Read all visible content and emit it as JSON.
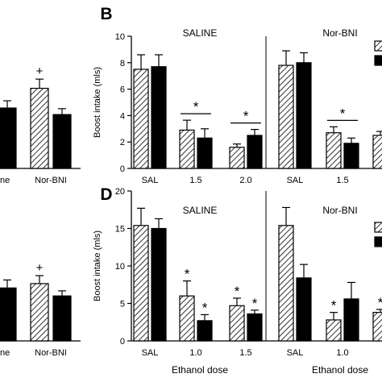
{
  "chart_data": [
    {
      "panel_letter": "",
      "type": "bar",
      "title": "",
      "xlabel": "",
      "ylabel": "",
      "ylim": [
        0,
        10
      ],
      "group_labels": [
        "ne",
        "Nor-BNI"
      ],
      "categories": [
        {
          "label": "",
          "values": [
            null,
            4.6
          ]
        },
        {
          "label": "",
          "values": [
            6.1,
            4.1
          ]
        }
      ],
      "error_bars": [
        {
          "values": [
            null,
            0.55
          ]
        },
        {
          "values": [
            0.7,
            0.45
          ]
        }
      ],
      "annotations": [
        {
          "text": "+",
          "category": 1,
          "series": 0
        }
      ]
    },
    {
      "panel_letter": "",
      "type": "bar",
      "title": "",
      "xlabel": "",
      "ylabel": "",
      "ylim": [
        0,
        20
      ],
      "group_labels": [
        "ne",
        "Nor-BNI"
      ],
      "categories": [
        {
          "label": "",
          "values": [
            null,
            7.3
          ]
        },
        {
          "label": "",
          "values": [
            7.9,
            6.2
          ]
        }
      ],
      "error_bars": [
        {
          "values": [
            null,
            1.1
          ]
        },
        {
          "values": [
            1.1,
            0.7
          ]
        }
      ],
      "annotations": [
        {
          "text": "+",
          "category": 1,
          "series": 0
        }
      ]
    },
    {
      "panel_letter": "B",
      "type": "bar",
      "xlabel": "",
      "ylabel": "Boost intake (mls)",
      "ylim": [
        0,
        10
      ],
      "yticks": [
        "0",
        "2",
        "4",
        "6",
        "8",
        "10"
      ],
      "group_labels": [
        "SALINE",
        "Nor-BNI"
      ],
      "groups": [
        {
          "title": "SALINE",
          "categories": [
            "SAL",
            "1.5",
            "2.0"
          ],
          "values": [
            [
              7.5,
              7.7
            ],
            [
              2.9,
              2.3
            ],
            [
              1.6,
              2.5
            ]
          ],
          "errors": [
            [
              1.1,
              0.9
            ],
            [
              0.75,
              0.7
            ],
            [
              0.25,
              0.45
            ]
          ],
          "brackets": [
            {
              "cat": 1,
              "text": "*"
            },
            {
              "cat": 2,
              "text": "*"
            }
          ],
          "stars": []
        },
        {
          "title": "Nor-BNI",
          "categories": [
            "SAL",
            "1.5",
            ""
          ],
          "values": [
            [
              7.8,
              8.0
            ],
            [
              2.7,
              1.9
            ],
            [
              2.5,
              null
            ]
          ],
          "errors": [
            [
              1.1,
              0.75
            ],
            [
              0.45,
              0.4
            ],
            [
              0.3,
              null
            ]
          ],
          "brackets": [
            {
              "cat": 1,
              "text": "*"
            }
          ],
          "stars": []
        }
      ]
    },
    {
      "panel_letter": "D",
      "type": "bar",
      "xlabel": "Ethanol dose",
      "ylabel": "Boost intake (mls)",
      "ylim": [
        0,
        20
      ],
      "yticks": [
        "0",
        "5",
        "10",
        "15",
        "20"
      ],
      "group_labels": [
        "SALINE",
        "Nor-BNI"
      ],
      "groups": [
        {
          "title": "SALINE",
          "xlabel": "Ethanol dose",
          "categories": [
            "SAL",
            "1.0",
            "1.5"
          ],
          "values": [
            [
              15.4,
              15.0
            ],
            [
              6.0,
              2.7
            ],
            [
              4.7,
              3.6
            ]
          ],
          "errors": [
            [
              2.3,
              1.3
            ],
            [
              2.0,
              0.8
            ],
            [
              1.0,
              0.5
            ]
          ],
          "brackets": [],
          "stars": [
            {
              "cat": 1,
              "series": 0,
              "text": "*"
            },
            {
              "cat": 1,
              "series": 1,
              "text": "*"
            },
            {
              "cat": 2,
              "series": 0,
              "text": "*"
            },
            {
              "cat": 2,
              "series": 1,
              "text": "*"
            }
          ]
        },
        {
          "title": "Nor-BNI",
          "xlabel": "Ethanol dose",
          "categories": [
            "SAL",
            "1.0",
            ""
          ],
          "values": [
            [
              15.4,
              8.4
            ],
            [
              2.8,
              5.6
            ],
            [
              3.8,
              null
            ]
          ],
          "errors": [
            [
              2.4,
              1.8
            ],
            [
              1.0,
              2.2
            ],
            [
              0.4,
              null
            ]
          ],
          "brackets": [],
          "stars": [
            {
              "cat": 1,
              "series": 0,
              "text": "*"
            },
            {
              "cat": 2,
              "series": 0,
              "text": "*"
            }
          ]
        }
      ]
    }
  ]
}
